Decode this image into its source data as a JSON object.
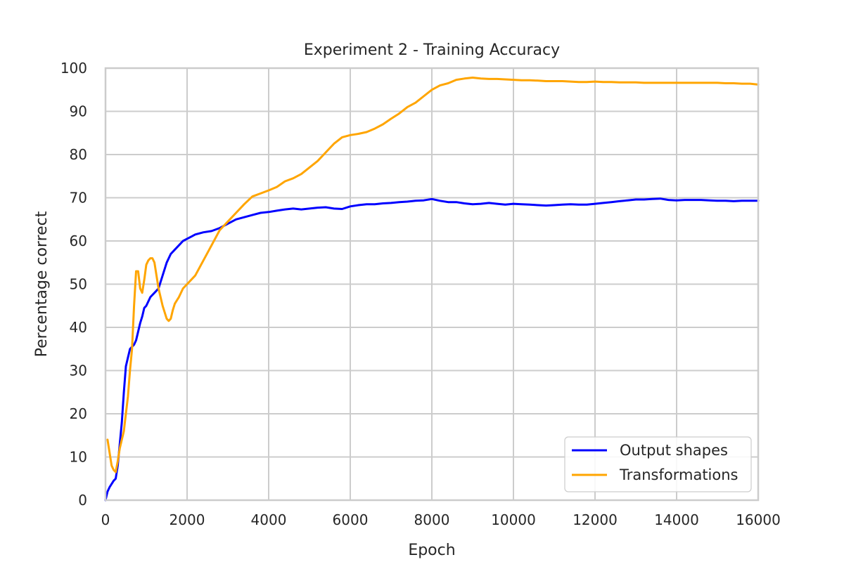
{
  "chart_data": {
    "type": "line",
    "title": "Experiment 2 - Training Accuracy",
    "xlabel": "Epoch",
    "ylabel": "Percentage correct",
    "xlim": [
      0,
      16000
    ],
    "ylim": [
      0,
      100
    ],
    "xticks": [
      0,
      2000,
      4000,
      6000,
      8000,
      10000,
      12000,
      14000,
      16000
    ],
    "yticks": [
      0,
      10,
      20,
      30,
      40,
      50,
      60,
      70,
      80,
      90,
      100
    ],
    "grid": true,
    "legend_position": "bottom-right",
    "series": [
      {
        "name": "Output shapes",
        "color": "#0000ff",
        "points": [
          [
            0,
            0
          ],
          [
            50,
            2
          ],
          [
            100,
            3
          ],
          [
            200,
            4.5
          ],
          [
            250,
            5
          ],
          [
            300,
            8
          ],
          [
            350,
            13
          ],
          [
            400,
            18
          ],
          [
            450,
            25
          ],
          [
            500,
            31
          ],
          [
            550,
            33
          ],
          [
            600,
            35
          ],
          [
            650,
            35.5
          ],
          [
            700,
            36
          ],
          [
            750,
            37
          ],
          [
            800,
            39
          ],
          [
            850,
            41
          ],
          [
            900,
            42.5
          ],
          [
            950,
            44.5
          ],
          [
            1000,
            45
          ],
          [
            1100,
            47
          ],
          [
            1200,
            48
          ],
          [
            1300,
            49
          ],
          [
            1400,
            52
          ],
          [
            1500,
            55
          ],
          [
            1600,
            57
          ],
          [
            1700,
            58
          ],
          [
            1800,
            59
          ],
          [
            1900,
            60
          ],
          [
            2000,
            60.5
          ],
          [
            2100,
            61
          ],
          [
            2200,
            61.5
          ],
          [
            2400,
            62
          ],
          [
            2600,
            62.3
          ],
          [
            2800,
            63
          ],
          [
            3000,
            64
          ],
          [
            3200,
            65
          ],
          [
            3400,
            65.5
          ],
          [
            3600,
            66
          ],
          [
            3800,
            66.5
          ],
          [
            4000,
            66.7
          ],
          [
            4200,
            67
          ],
          [
            4400,
            67.3
          ],
          [
            4600,
            67.5
          ],
          [
            4800,
            67.3
          ],
          [
            5000,
            67.5
          ],
          [
            5200,
            67.7
          ],
          [
            5400,
            67.8
          ],
          [
            5600,
            67.5
          ],
          [
            5800,
            67.4
          ],
          [
            6000,
            68
          ],
          [
            6200,
            68.3
          ],
          [
            6400,
            68.5
          ],
          [
            6600,
            68.5
          ],
          [
            6800,
            68.7
          ],
          [
            7000,
            68.8
          ],
          [
            7200,
            69
          ],
          [
            7400,
            69.1
          ],
          [
            7600,
            69.3
          ],
          [
            7800,
            69.4
          ],
          [
            8000,
            69.7
          ],
          [
            8200,
            69.3
          ],
          [
            8400,
            69
          ],
          [
            8600,
            69
          ],
          [
            8800,
            68.7
          ],
          [
            9000,
            68.5
          ],
          [
            9200,
            68.6
          ],
          [
            9400,
            68.8
          ],
          [
            9600,
            68.6
          ],
          [
            9800,
            68.4
          ],
          [
            10000,
            68.6
          ],
          [
            10200,
            68.5
          ],
          [
            10400,
            68.4
          ],
          [
            10600,
            68.3
          ],
          [
            10800,
            68.2
          ],
          [
            11000,
            68.3
          ],
          [
            11200,
            68.4
          ],
          [
            11400,
            68.5
          ],
          [
            11600,
            68.4
          ],
          [
            11800,
            68.4
          ],
          [
            12000,
            68.6
          ],
          [
            12200,
            68.8
          ],
          [
            12400,
            69
          ],
          [
            12600,
            69.2
          ],
          [
            12800,
            69.4
          ],
          [
            13000,
            69.6
          ],
          [
            13200,
            69.6
          ],
          [
            13400,
            69.7
          ],
          [
            13600,
            69.8
          ],
          [
            13800,
            69.5
          ],
          [
            14000,
            69.4
          ],
          [
            14200,
            69.5
          ],
          [
            14400,
            69.5
          ],
          [
            14600,
            69.5
          ],
          [
            14800,
            69.4
          ],
          [
            15000,
            69.3
          ],
          [
            15200,
            69.3
          ],
          [
            15400,
            69.2
          ],
          [
            15600,
            69.3
          ],
          [
            15800,
            69.3
          ],
          [
            16000,
            69.3
          ]
        ]
      },
      {
        "name": "Transformations",
        "color": "#ffa500",
        "points": [
          [
            50,
            14
          ],
          [
            100,
            11
          ],
          [
            150,
            8
          ],
          [
            200,
            7
          ],
          [
            250,
            6.5
          ],
          [
            300,
            9
          ],
          [
            350,
            12
          ],
          [
            400,
            14
          ],
          [
            450,
            16
          ],
          [
            500,
            20
          ],
          [
            550,
            24
          ],
          [
            600,
            30
          ],
          [
            650,
            35
          ],
          [
            700,
            45
          ],
          [
            750,
            53
          ],
          [
            800,
            53
          ],
          [
            850,
            49
          ],
          [
            900,
            48
          ],
          [
            950,
            51
          ],
          [
            1000,
            54.5
          ],
          [
            1050,
            55.5
          ],
          [
            1100,
            56
          ],
          [
            1150,
            56
          ],
          [
            1200,
            55
          ],
          [
            1250,
            52
          ],
          [
            1300,
            49
          ],
          [
            1400,
            45
          ],
          [
            1500,
            42
          ],
          [
            1550,
            41.5
          ],
          [
            1600,
            42
          ],
          [
            1650,
            44
          ],
          [
            1700,
            45.5
          ],
          [
            1800,
            47
          ],
          [
            1900,
            49
          ],
          [
            2000,
            50
          ],
          [
            2200,
            52
          ],
          [
            2400,
            55.5
          ],
          [
            2600,
            59
          ],
          [
            2800,
            62.5
          ],
          [
            3000,
            64.5
          ],
          [
            3200,
            66.5
          ],
          [
            3400,
            68.5
          ],
          [
            3600,
            70.3
          ],
          [
            3800,
            71
          ],
          [
            4000,
            71.7
          ],
          [
            4200,
            72.5
          ],
          [
            4400,
            73.8
          ],
          [
            4600,
            74.5
          ],
          [
            4800,
            75.5
          ],
          [
            5000,
            77
          ],
          [
            5200,
            78.5
          ],
          [
            5400,
            80.5
          ],
          [
            5600,
            82.5
          ],
          [
            5800,
            84
          ],
          [
            6000,
            84.5
          ],
          [
            6200,
            84.8
          ],
          [
            6400,
            85.2
          ],
          [
            6600,
            86
          ],
          [
            6800,
            87
          ],
          [
            7000,
            88.3
          ],
          [
            7200,
            89.5
          ],
          [
            7400,
            91
          ],
          [
            7600,
            92
          ],
          [
            7800,
            93.5
          ],
          [
            8000,
            95
          ],
          [
            8200,
            96
          ],
          [
            8400,
            96.5
          ],
          [
            8600,
            97.3
          ],
          [
            8800,
            97.6
          ],
          [
            9000,
            97.8
          ],
          [
            9200,
            97.6
          ],
          [
            9400,
            97.5
          ],
          [
            9600,
            97.5
          ],
          [
            9800,
            97.4
          ],
          [
            10000,
            97.3
          ],
          [
            10200,
            97.2
          ],
          [
            10400,
            97.2
          ],
          [
            10600,
            97.1
          ],
          [
            10800,
            97
          ],
          [
            11000,
            97
          ],
          [
            11200,
            97
          ],
          [
            11400,
            96.9
          ],
          [
            11600,
            96.8
          ],
          [
            11800,
            96.8
          ],
          [
            12000,
            96.9
          ],
          [
            12200,
            96.8
          ],
          [
            12400,
            96.8
          ],
          [
            12600,
            96.7
          ],
          [
            12800,
            96.7
          ],
          [
            13000,
            96.7
          ],
          [
            13200,
            96.6
          ],
          [
            13400,
            96.6
          ],
          [
            13600,
            96.6
          ],
          [
            13800,
            96.6
          ],
          [
            14000,
            96.6
          ],
          [
            14200,
            96.6
          ],
          [
            14400,
            96.6
          ],
          [
            14600,
            96.6
          ],
          [
            14800,
            96.6
          ],
          [
            15000,
            96.6
          ],
          [
            15200,
            96.5
          ],
          [
            15400,
            96.5
          ],
          [
            15600,
            96.4
          ],
          [
            15800,
            96.4
          ],
          [
            16000,
            96.2
          ]
        ]
      }
    ]
  }
}
